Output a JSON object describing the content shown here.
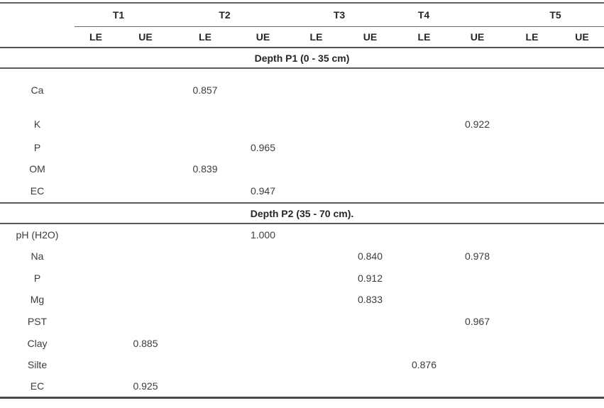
{
  "table": {
    "treatments": [
      {
        "label": "T1"
      },
      {
        "label": "T2"
      },
      {
        "label": "T3"
      },
      {
        "label": "T4"
      },
      {
        "label": "T5"
      }
    ],
    "column_headers": [
      "LE",
      "UE",
      "LE",
      "UE",
      "LE",
      "UE",
      "LE",
      "UE",
      "LE",
      "UE"
    ],
    "sections": [
      {
        "title": "Depth P1 (0 - 35 cm)",
        "rows": [
          {
            "label": "Ca",
            "values": [
              "",
              "",
              "0.857",
              "",
              "",
              "",
              "",
              "",
              "",
              ""
            ]
          },
          {
            "label": "K",
            "values": [
              "",
              "",
              "",
              "",
              "",
              "",
              "",
              "0.922",
              "",
              ""
            ]
          },
          {
            "label": "P",
            "values": [
              "",
              "",
              "",
              "0.965",
              "",
              "",
              "",
              "",
              "",
              ""
            ]
          },
          {
            "label": "OM",
            "values": [
              "",
              "",
              "0.839",
              "",
              "",
              "",
              "",
              "",
              "",
              ""
            ]
          },
          {
            "label": "EC",
            "values": [
              "",
              "",
              "",
              "0.947",
              "",
              "",
              "",
              "",
              "",
              ""
            ]
          }
        ]
      },
      {
        "title": "Depth P2 (35 - 70 cm).",
        "rows": [
          {
            "label": "pH (H2O)",
            "values": [
              "",
              "",
              "",
              "1.000",
              "",
              "",
              "",
              "",
              "",
              ""
            ]
          },
          {
            "label": "Na",
            "values": [
              "",
              "",
              "",
              "",
              "",
              "0.840",
              "",
              "0.978",
              "",
              ""
            ]
          },
          {
            "label": "P",
            "values": [
              "",
              "",
              "",
              "",
              "",
              "0.912",
              "",
              "",
              "",
              ""
            ]
          },
          {
            "label": "Mg",
            "values": [
              "",
              "",
              "",
              "",
              "",
              "0.833",
              "",
              "",
              "",
              ""
            ]
          },
          {
            "label": "PST",
            "values": [
              "",
              "",
              "",
              "",
              "",
              "",
              "",
              "0.967",
              "",
              ""
            ]
          },
          {
            "label": "Clay",
            "values": [
              "",
              "0.885",
              "",
              "",
              "",
              "",
              "",
              "",
              "",
              ""
            ]
          },
          {
            "label": "Silte",
            "values": [
              "",
              "",
              "",
              "",
              "",
              "",
              "0.876",
              "",
              "",
              ""
            ]
          },
          {
            "label": "EC",
            "values": [
              "",
              "0.925",
              "",
              "",
              "",
              "",
              "",
              "",
              "",
              ""
            ]
          }
        ]
      }
    ],
    "colors": {
      "rule": "#5a5a5a",
      "text": "#3c3c3c",
      "header_text": "#252525"
    }
  }
}
